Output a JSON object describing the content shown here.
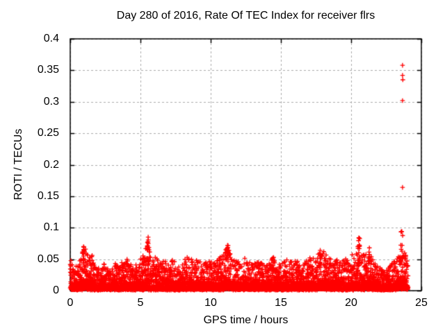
{
  "chart_data": {
    "type": "scatter",
    "title": "Day 280 of 2016, Rate Of TEC Index for receiver flrs",
    "xlabel": "GPS time / hours",
    "ylabel": "ROTI / TECUs",
    "xlim": [
      0,
      25
    ],
    "ylim": [
      0,
      0.4
    ],
    "xticks": [
      0,
      5,
      10,
      15,
      20,
      25
    ],
    "xtick_labels": [
      "0",
      "5",
      "10",
      "15",
      "20",
      "25"
    ],
    "yticks": [
      0,
      0.05,
      0.1,
      0.15,
      0.2,
      0.25,
      0.3,
      0.35,
      0.4
    ],
    "ytick_labels": [
      "0",
      "0.05",
      "0.1",
      "0.15",
      "0.2",
      "0.25",
      "0.3",
      "0.35",
      "0.4"
    ],
    "grid": true,
    "legend": "none",
    "marker": "+",
    "marker_color": "#ff0000",
    "grid_color": "#aaaaaa",
    "border_color": "#000000",
    "text_color": "#000000",
    "background_color": "#ffffff",
    "series_name": "ROTI",
    "data_time_range_hours": [
      0,
      24.06
    ],
    "dense_band": {
      "description": "Dense noise band of + markers from ROTI ~0 up to a fluctuating envelope; solid red below ~60% of envelope, sparse spiky tops above.",
      "hours": [
        0,
        0.3,
        0.6,
        0.9,
        1.1,
        1.3,
        1.6,
        1.9,
        2.2,
        2.5,
        2.8,
        3.1,
        3.4,
        3.7,
        4.0,
        4.3,
        4.6,
        4.9,
        5.2,
        5.5,
        5.8,
        6.1,
        6.4,
        6.7,
        7.0,
        7.3,
        7.6,
        7.9,
        8.2,
        8.5,
        8.8,
        9.1,
        9.4,
        9.7,
        10.0,
        10.3,
        10.6,
        10.9,
        11.2,
        11.5,
        11.8,
        12.1,
        12.4,
        12.7,
        13.0,
        13.3,
        13.6,
        13.9,
        14.2,
        14.5,
        14.8,
        15.1,
        15.4,
        15.7,
        16.0,
        16.3,
        16.6,
        16.9,
        17.2,
        17.5,
        17.8,
        18.1,
        18.4,
        18.7,
        19.0,
        19.3,
        19.6,
        19.9,
        20.2,
        20.5,
        20.8,
        21.1,
        21.4,
        21.7,
        22.0,
        22.3,
        22.6,
        22.9,
        23.2,
        23.5,
        23.8,
        24.1
      ],
      "envelope_max": [
        0.05,
        0.038,
        0.044,
        0.062,
        0.07,
        0.052,
        0.056,
        0.036,
        0.044,
        0.048,
        0.034,
        0.045,
        0.04,
        0.048,
        0.052,
        0.042,
        0.04,
        0.048,
        0.056,
        0.078,
        0.056,
        0.054,
        0.044,
        0.05,
        0.046,
        0.054,
        0.042,
        0.037,
        0.052,
        0.057,
        0.044,
        0.052,
        0.04,
        0.046,
        0.05,
        0.045,
        0.052,
        0.058,
        0.07,
        0.056,
        0.05,
        0.045,
        0.053,
        0.046,
        0.042,
        0.05,
        0.046,
        0.039,
        0.05,
        0.055,
        0.041,
        0.045,
        0.05,
        0.048,
        0.052,
        0.044,
        0.041,
        0.05,
        0.054,
        0.057,
        0.063,
        0.058,
        0.056,
        0.046,
        0.05,
        0.043,
        0.054,
        0.042,
        0.056,
        0.065,
        0.058,
        0.06,
        0.056,
        0.044,
        0.038,
        0.03,
        0.038,
        0.046,
        0.05,
        0.068,
        0.062,
        0.05
      ]
    },
    "spike_clusters": [
      {
        "t": 0.95,
        "top": 0.07,
        "n": 12
      },
      {
        "t": 5.55,
        "top": 0.085,
        "n": 16
      },
      {
        "t": 11.2,
        "top": 0.072,
        "n": 14
      },
      {
        "t": 17.8,
        "top": 0.064,
        "n": 8
      },
      {
        "t": 20.55,
        "top": 0.084,
        "n": 16
      },
      {
        "t": 21.3,
        "top": 0.068,
        "n": 8
      },
      {
        "t": 23.6,
        "top": 0.094,
        "n": 10
      }
    ],
    "isolated_points": [
      [
        1.56,
        0.056
      ],
      [
        18.05,
        0.062
      ],
      [
        20.08,
        0.057
      ],
      [
        23.63,
        0.072
      ]
    ],
    "outliers": [
      [
        23.66,
        0.358
      ],
      [
        23.66,
        0.342
      ],
      [
        23.68,
        0.335
      ],
      [
        23.66,
        0.302
      ],
      [
        23.66,
        0.164
      ]
    ],
    "n_background_points": 4800,
    "seed": 280
  }
}
